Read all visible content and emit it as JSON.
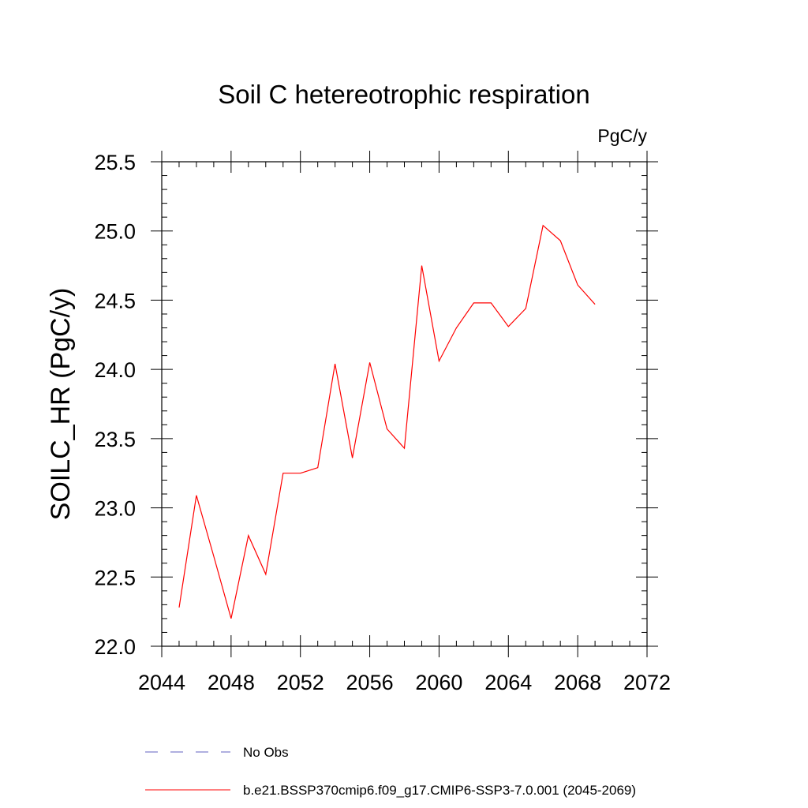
{
  "chart_data": {
    "type": "line",
    "title": "Soil C hetereotrophic respiration",
    "units": "PgC/y",
    "ylabel": "SOILC_HR  (PgC/y)",
    "xlabel": "",
    "xlim": [
      2044,
      2072
    ],
    "ylim": [
      22.0,
      25.5
    ],
    "x_ticks": [
      "2044",
      "2048",
      "2052",
      "2056",
      "2060",
      "2064",
      "2068",
      "2072"
    ],
    "y_ticks": [
      "22.0",
      "22.5",
      "23.0",
      "23.5",
      "24.0",
      "24.5",
      "25.0",
      "25.5"
    ],
    "x_tick_values": [
      2044,
      2048,
      2052,
      2056,
      2060,
      2064,
      2068,
      2072
    ],
    "y_tick_values": [
      22.0,
      22.5,
      23.0,
      23.5,
      24.0,
      24.5,
      25.0,
      25.5
    ],
    "x_minor_step": 1,
    "y_minor_step": 0.1,
    "grid": false,
    "series": [
      {
        "name": "b.e21.BSSP370cmip6.f09_g17.CMIP6-SSP3-7.0.001 (2045-2069)",
        "color": "#ff0000",
        "style": "solid",
        "x": [
          2045,
          2046,
          2047,
          2048,
          2049,
          2050,
          2051,
          2052,
          2053,
          2054,
          2055,
          2056,
          2057,
          2058,
          2059,
          2060,
          2061,
          2062,
          2063,
          2064,
          2065,
          2066,
          2067,
          2068,
          2069
        ],
        "values": [
          22.28,
          23.09,
          22.65,
          22.2,
          22.8,
          22.52,
          23.25,
          23.25,
          23.29,
          24.04,
          23.36,
          24.05,
          23.57,
          23.43,
          24.75,
          24.06,
          24.3,
          24.48,
          24.48,
          24.31,
          24.44,
          25.04,
          24.93,
          24.61,
          24.47
        ]
      }
    ],
    "legend": [
      {
        "label": "No Obs",
        "color": "#6060c0",
        "style": "dashed"
      },
      {
        "label": "b.e21.BSSP370cmip6.f09_g17.CMIP6-SSP3-7.0.001 (2045-2069)",
        "color": "#ff0000",
        "style": "solid"
      }
    ],
    "legend_position": "bottom"
  }
}
